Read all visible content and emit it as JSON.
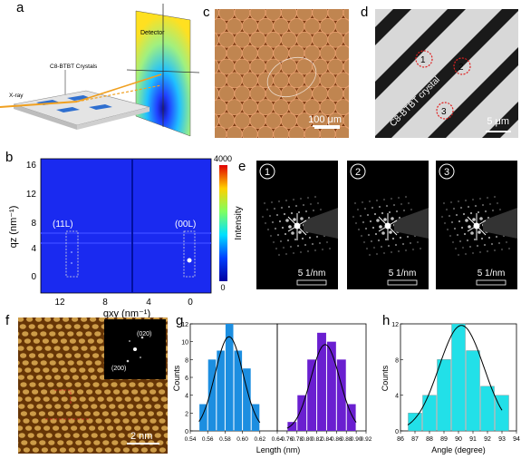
{
  "panel_letters": [
    "a",
    "b",
    "c",
    "d",
    "e",
    "f",
    "g",
    "h"
  ],
  "panel_a": {
    "detector_label": "Detector",
    "crystal_label": "C8-BTBT Crystals",
    "xray_label": "X-ray"
  },
  "panel_c": {
    "scale_label": "100 μm"
  },
  "panel_d": {
    "crystal_label": "C8-BTBT crystal",
    "scale_label": "5 μm",
    "spots": [
      "1",
      "2",
      "3"
    ]
  },
  "panel_b": {
    "ylabel": "qz (nm⁻¹)",
    "xlabel": "qxy (nm⁻¹)",
    "yticks": [
      "16",
      "12",
      "8",
      "4",
      "0"
    ],
    "xticks": [
      "12",
      "8",
      "4",
      "0"
    ],
    "peak_labels": [
      "(11L)",
      "(00L)"
    ],
    "colorbar_label": "Intensity",
    "colorbar_max": "4000",
    "colorbar_min": "0"
  },
  "panel_e": {
    "patterns": [
      "1",
      "2",
      "3"
    ],
    "scale_label": "5 1/nm"
  },
  "panel_f": {
    "fft_labels": [
      "(020)",
      "(200)"
    ],
    "scale_label": "2 nm"
  },
  "chart_data": [
    {
      "type": "bar",
      "title": "",
      "xlabel": "Length (nm)",
      "ylabel": "Counts",
      "ylim": [
        0,
        12
      ],
      "yticks": [
        0,
        2,
        4,
        6,
        8,
        10,
        12
      ],
      "series": [
        {
          "color": "#1c8ee0",
          "x_range": [
            0.54,
            0.64
          ],
          "xticks": [
            0.54,
            0.56,
            0.58,
            0.6,
            0.62,
            0.64
          ],
          "bin_centers": [
            0.555,
            0.565,
            0.575,
            0.585,
            0.595,
            0.605,
            0.615
          ],
          "values": [
            3,
            8,
            9,
            12,
            9,
            7,
            3
          ]
        },
        {
          "color": "#6a1fd0",
          "x_range": [
            0.74,
            0.92
          ],
          "xticks": [
            0.76,
            0.78,
            0.8,
            0.82,
            0.84,
            0.86,
            0.88,
            0.9,
            0.92
          ],
          "bin_centers": [
            0.77,
            0.79,
            0.81,
            0.83,
            0.85,
            0.87,
            0.89
          ],
          "values": [
            1,
            4,
            8,
            11,
            10,
            8,
            3
          ]
        }
      ]
    },
    {
      "type": "bar",
      "title": "",
      "xlabel": "Angle (degree)",
      "ylabel": "Counts",
      "ylim": [
        0,
        12
      ],
      "yticks": [
        0,
        4,
        8,
        12
      ],
      "xlim": [
        86,
        94
      ],
      "xticks": [
        86,
        87,
        88,
        89,
        90,
        91,
        92,
        93,
        94
      ],
      "color": "#22e0e8",
      "bin_centers": [
        87,
        88,
        89,
        90,
        91,
        92,
        93
      ],
      "values": [
        2,
        4,
        8,
        12,
        9,
        5,
        4
      ]
    }
  ]
}
